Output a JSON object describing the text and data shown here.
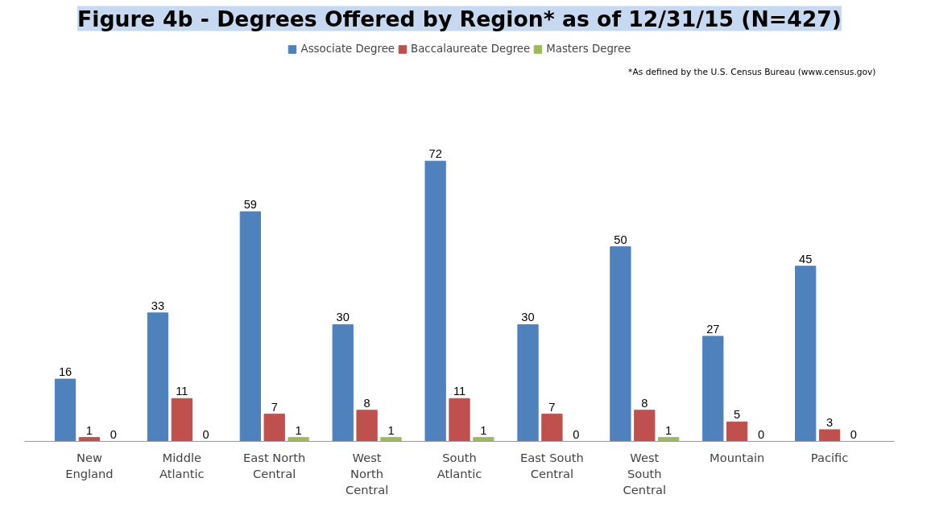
{
  "chart_data": {
    "type": "bar",
    "title": "Figure 4b - Degrees Offered by Region* as of 12/31/15 (N=427)",
    "categories": [
      "New\nEngland",
      "Middle\nAtlantic",
      "East North\nCentral",
      "West\nNorth\nCentral",
      "South\nAtlantic",
      "East South\nCentral",
      "West\nSouth\nCentral",
      "Mountain",
      "Pacific"
    ],
    "series": [
      {
        "name": "Associate Degree",
        "color": "#4f81bd",
        "values": [
          16,
          33,
          59,
          30,
          72,
          30,
          50,
          27,
          45
        ]
      },
      {
        "name": "Baccalaureate Degree",
        "color": "#c0504d",
        "values": [
          1,
          11,
          7,
          8,
          11,
          7,
          8,
          5,
          3
        ]
      },
      {
        "name": "Masters Degree",
        "color": "#9bbb59",
        "values": [
          0,
          0,
          1,
          1,
          1,
          0,
          1,
          0,
          0
        ]
      }
    ],
    "data_labels": true,
    "legend": "top",
    "grid": false,
    "annotations": [
      "*As defined by the U.S. Census Bureau (www.census.gov)"
    ]
  }
}
